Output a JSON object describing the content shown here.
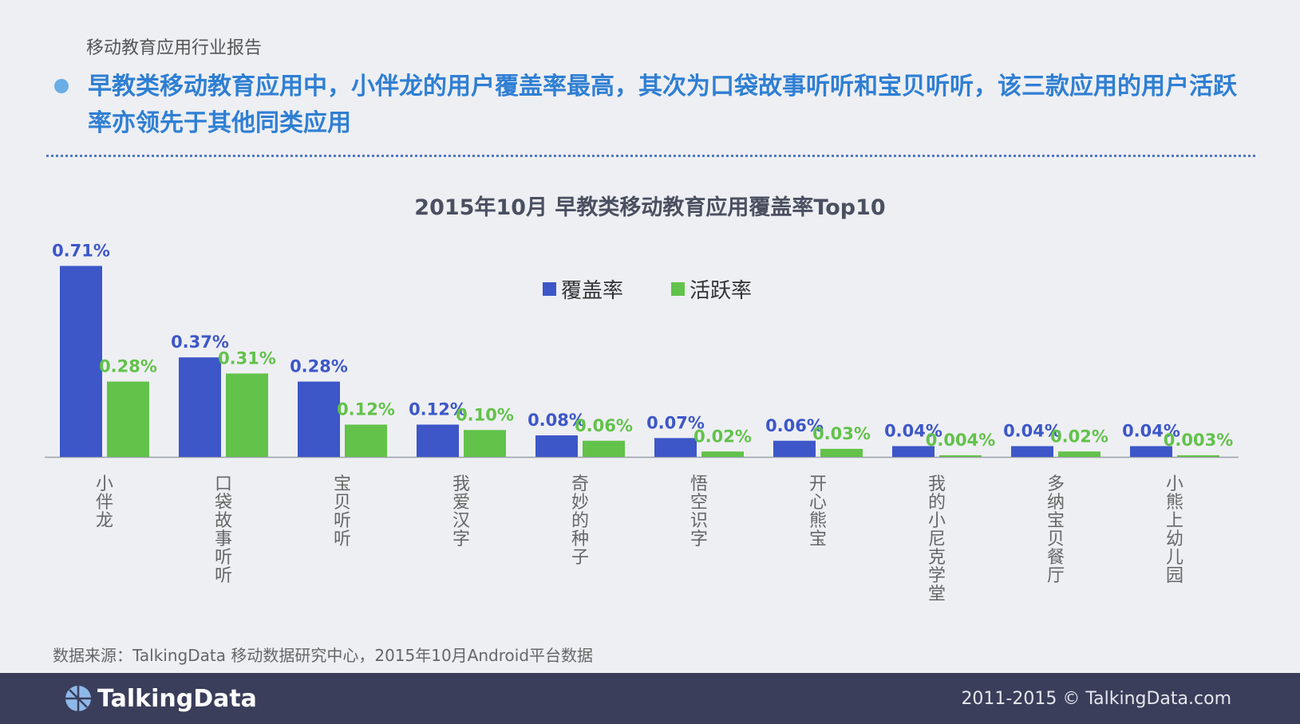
{
  "header": {
    "report_label": "移动教育应用行业报告",
    "headline": "早教类移动教育应用中，小伴龙的用户覆盖率最高，其次为口袋故事听听和宝贝听听，该三款应用的用户活跃率亦领先于其他同类应用"
  },
  "colors": {
    "coverage": "#3d57c8",
    "activity": "#62c24a",
    "headline": "#2f7fd3",
    "footer_bg": "#3a3e5a"
  },
  "chart_data": {
    "type": "bar",
    "title": "2015年10月  早教类移动教育应用覆盖率Top10",
    "categories": [
      "小伴龙",
      "口袋故事听听",
      "宝贝听听",
      "我爱汉字",
      "奇妙的种子",
      "悟空识字",
      "开心熊宝",
      "我的小尼克学堂",
      "多纳宝贝餐厅",
      "小熊上幼儿园"
    ],
    "series": [
      {
        "name": "覆盖率",
        "values": [
          0.71,
          0.37,
          0.28,
          0.12,
          0.08,
          0.07,
          0.06,
          0.04,
          0.04,
          0.04
        ],
        "labels": [
          "0.71%",
          "0.37%",
          "0.28%",
          "0.12%",
          "0.08%",
          "0.07%",
          "0.06%",
          "0.04%",
          "0.04%",
          "0.04%"
        ]
      },
      {
        "name": "活跃率",
        "values": [
          0.28,
          0.31,
          0.12,
          0.1,
          0.06,
          0.02,
          0.03,
          0.004,
          0.02,
          0.003
        ],
        "labels": [
          "0.28%",
          "0.31%",
          "0.12%",
          "0.10%",
          "0.06%",
          "0.02%",
          "0.03%",
          "0.004%",
          "0.02%",
          "0.003%"
        ]
      }
    ],
    "xlabel": "",
    "ylabel": "",
    "ylim": [
      0,
      0.75
    ],
    "legend_position": "top-center"
  },
  "source": {
    "text": "数据来源：TalkingData 移动数据研究中心，2015年10月Android平台数据"
  },
  "footer": {
    "logo_text": "TalkingData",
    "copyright": "2011-2015 © TalkingData.com"
  }
}
